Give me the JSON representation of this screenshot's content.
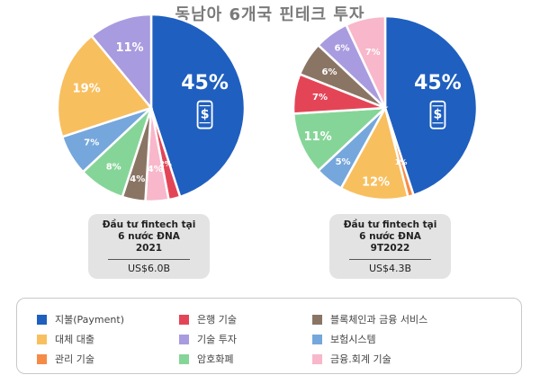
{
  "title": "동남아 6개국 핀테크 투자",
  "colors": {
    "payment": "#1f5fbf",
    "banking": "#e34557",
    "blockchain": "#8a7565",
    "lending": "#f8bf5f",
    "investment": "#a99bdf",
    "insurance": "#75a7dc",
    "wealth": "#f58b46",
    "crypto": "#86d598",
    "accounting": "#f8b7ca"
  },
  "chart_data": [
    {
      "type": "pie",
      "caption": [
        "Đầu tư fintech tại",
        "6 nước ĐNA",
        "2021"
      ],
      "total": "US$6.0B",
      "start_angle_deg": 0,
      "slices": [
        {
          "key": "payment",
          "value": 45,
          "label": "45%"
        },
        {
          "key": "banking",
          "value": 2,
          "label": "2%"
        },
        {
          "key": "accounting",
          "value": 4,
          "label": "4%"
        },
        {
          "key": "blockchain",
          "value": 4,
          "label": "4%"
        },
        {
          "key": "crypto",
          "value": 8,
          "label": "8%"
        },
        {
          "key": "insurance",
          "value": 7,
          "label": "7%"
        },
        {
          "key": "lending",
          "value": 19,
          "label": "19%"
        },
        {
          "key": "investment",
          "value": 11,
          "label": "11%"
        }
      ]
    },
    {
      "type": "pie",
      "caption": [
        "Đầu tư fintech tại",
        "6 nước ĐNA",
        "9T2022"
      ],
      "total": "US$4.3B",
      "start_angle_deg": 0,
      "slices": [
        {
          "key": "payment",
          "value": 45,
          "label": "45%"
        },
        {
          "key": "wealth",
          "value": 1,
          "label": "1%"
        },
        {
          "key": "lending",
          "value": 12,
          "label": "12%"
        },
        {
          "key": "insurance",
          "value": 5,
          "label": "5%"
        },
        {
          "key": "crypto",
          "value": 11,
          "label": "11%"
        },
        {
          "key": "banking",
          "value": 7,
          "label": "7%"
        },
        {
          "key": "blockchain",
          "value": 6,
          "label": "6%"
        },
        {
          "key": "investment",
          "value": 6,
          "label": "6%"
        },
        {
          "key": "accounting",
          "value": 7,
          "label": "7%"
        }
      ]
    }
  ],
  "legend": [
    {
      "key": "payment",
      "label": "지불(Payment)"
    },
    {
      "key": "banking",
      "label": "은행 기술"
    },
    {
      "key": "blockchain",
      "label": "블록체인과 금융 서비스"
    },
    {
      "key": "lending",
      "label": "대체 대출"
    },
    {
      "key": "investment",
      "label": "기술 투자"
    },
    {
      "key": "insurance",
      "label": "보험시스템"
    },
    {
      "key": "wealth",
      "label": "관리 기술"
    },
    {
      "key": "crypto",
      "label": "암호화폐"
    },
    {
      "key": "accounting",
      "label": "금융.회계 기술"
    }
  ]
}
